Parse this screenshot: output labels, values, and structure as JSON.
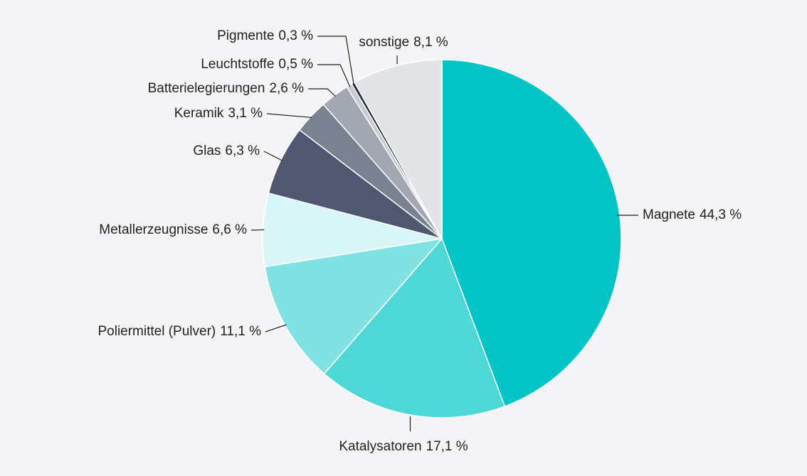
{
  "chart_data": {
    "type": "pie",
    "categories": [
      "Magnete",
      "Katalysatoren",
      "Poliermittel (Pulver)",
      "Metallerzeugnisse",
      "Glas",
      "Keramik",
      "Batterielegierungen",
      "Leuchtstoffe",
      "Pigmente",
      "sonstige"
    ],
    "values": [
      44.3,
      17.1,
      11.1,
      6.6,
      6.3,
      3.1,
      2.6,
      0.5,
      0.3,
      8.1
    ],
    "value_labels": [
      "44,3 %",
      "17,1 %",
      "11,1 %",
      "6,6 %",
      "6,3 %",
      "3,1 %",
      "2,6 %",
      "0,5 %",
      "0,3 %",
      "8,1 %"
    ],
    "colors": [
      "#00c5c4",
      "#4dd7d7",
      "#80e2e2",
      "#d8f6f6",
      "#4f5870",
      "#7a8191",
      "#a3a7b2",
      "#c8cad1",
      "#2b2f3a",
      "#e3e4e8"
    ]
  }
}
